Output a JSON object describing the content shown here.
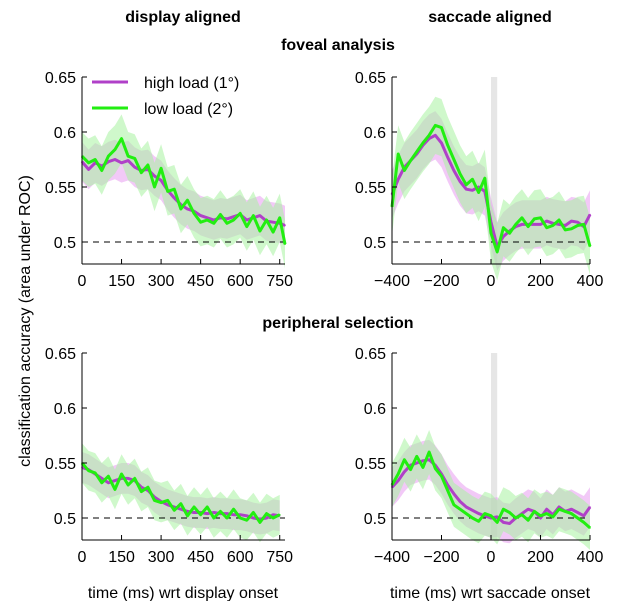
{
  "figure": {
    "col_titles": [
      "display aligned",
      "saccade aligned"
    ],
    "row_titles": [
      "foveal analysis",
      "peripheral selection"
    ],
    "ylabel": "classification accuracy (area under ROC)",
    "xlabel_display": "time (ms) wrt display onset",
    "xlabel_saccade": "time (ms) wrt saccade onset",
    "legend": [
      {
        "label": "high load (1°)",
        "color": "#b040c8"
      },
      {
        "label": "low load (2°)",
        "color": "#22ee11"
      }
    ],
    "colors": {
      "high_line": "#b040c8",
      "high_band": "#e89df0",
      "low_line": "#22ee11",
      "low_band": "#a8f2a0",
      "saccade_band": "#e6e6e6",
      "chance_line": "#000000"
    }
  },
  "chart_data": [
    {
      "type": "line",
      "panel": "foveal analysis, display aligned",
      "xlim": [
        0,
        770
      ],
      "ylim": [
        0.48,
        0.65
      ],
      "xticks": [
        0,
        150,
        300,
        450,
        600,
        750
      ],
      "yticks": [
        0.5,
        0.55,
        0.6,
        0.65
      ],
      "ytick_labels": [
        "0.5",
        "0.55",
        "0.6",
        "0.65"
      ],
      "chance": 0.5,
      "x": [
        0,
        25,
        50,
        75,
        100,
        125,
        150,
        175,
        200,
        225,
        250,
        275,
        300,
        325,
        350,
        375,
        400,
        425,
        450,
        475,
        500,
        525,
        550,
        575,
        600,
        625,
        650,
        675,
        700,
        725,
        750,
        770
      ],
      "series": [
        {
          "name": "high load (1°)",
          "values": [
            0.573,
            0.566,
            0.572,
            0.569,
            0.573,
            0.575,
            0.572,
            0.574,
            0.568,
            0.565,
            0.566,
            0.56,
            0.556,
            0.547,
            0.54,
            0.534,
            0.53,
            0.528,
            0.524,
            0.522,
            0.52,
            0.522,
            0.521,
            0.523,
            0.525,
            0.52,
            0.522,
            0.524,
            0.519,
            0.518,
            0.517,
            0.515
          ],
          "band": 0.018
        },
        {
          "name": "low load (2°)",
          "values": [
            0.578,
            0.572,
            0.575,
            0.565,
            0.578,
            0.584,
            0.594,
            0.578,
            0.576,
            0.563,
            0.57,
            0.55,
            0.567,
            0.546,
            0.548,
            0.53,
            0.538,
            0.526,
            0.518,
            0.52,
            0.517,
            0.525,
            0.517,
            0.52,
            0.526,
            0.514,
            0.524,
            0.51,
            0.52,
            0.509,
            0.522,
            0.498
          ],
          "band": 0.022
        }
      ]
    },
    {
      "type": "line",
      "panel": "foveal analysis, saccade aligned",
      "xlim": [
        -400,
        400
      ],
      "ylim": [
        0.48,
        0.65
      ],
      "xticks": [
        -400,
        -200,
        0,
        200,
        400
      ],
      "xtick_labels": [
        "−400",
        "−200",
        "0",
        "200",
        "400"
      ],
      "yticks": [
        0.5,
        0.55,
        0.6,
        0.65
      ],
      "ytick_labels": [
        "0.5",
        "0.55",
        "0.6",
        "0.65"
      ],
      "chance": 0.5,
      "saccade_band": [
        0,
        25
      ],
      "x": [
        -400,
        -375,
        -350,
        -325,
        -300,
        -275,
        -250,
        -225,
        -200,
        -175,
        -150,
        -125,
        -100,
        -75,
        -50,
        -25,
        0,
        25,
        50,
        75,
        100,
        125,
        150,
        175,
        200,
        225,
        250,
        275,
        300,
        325,
        350,
        375,
        400
      ],
      "series": [
        {
          "name": "high load (1°)",
          "values": [
            0.543,
            0.557,
            0.568,
            0.574,
            0.58,
            0.588,
            0.594,
            0.597,
            0.59,
            0.577,
            0.565,
            0.555,
            0.548,
            0.547,
            0.55,
            0.546,
            0.518,
            0.496,
            0.505,
            0.51,
            0.514,
            0.516,
            0.516,
            0.516,
            0.516,
            0.519,
            0.517,
            0.516,
            0.515,
            0.519,
            0.518,
            0.514,
            0.525
          ],
          "band": 0.022
        },
        {
          "name": "low load (2°)",
          "values": [
            0.532,
            0.58,
            0.565,
            0.574,
            0.582,
            0.59,
            0.597,
            0.606,
            0.604,
            0.588,
            0.575,
            0.562,
            0.552,
            0.557,
            0.545,
            0.558,
            0.508,
            0.491,
            0.513,
            0.508,
            0.516,
            0.522,
            0.514,
            0.521,
            0.522,
            0.513,
            0.515,
            0.52,
            0.511,
            0.512,
            0.515,
            0.516,
            0.496
          ],
          "band": 0.026
        }
      ]
    },
    {
      "type": "line",
      "panel": "peripheral selection, display aligned",
      "xlim": [
        0,
        770
      ],
      "ylim": [
        0.48,
        0.65
      ],
      "xticks": [
        0,
        150,
        300,
        450,
        600,
        750
      ],
      "yticks": [
        0.5,
        0.55,
        0.6,
        0.65
      ],
      "ytick_labels": [
        "0.5",
        "0.55",
        "0.6",
        "0.65"
      ],
      "chance": 0.5,
      "x": [
        0,
        25,
        50,
        75,
        100,
        125,
        150,
        175,
        200,
        225,
        250,
        275,
        300,
        325,
        350,
        375,
        400,
        425,
        450,
        475,
        500,
        525,
        550,
        575,
        600,
        625,
        650,
        675,
        700,
        725,
        750
      ],
      "series": [
        {
          "name": "high load (1°)",
          "values": [
            0.546,
            0.544,
            0.54,
            0.536,
            0.532,
            0.534,
            0.536,
            0.536,
            0.534,
            0.528,
            0.525,
            0.519,
            0.515,
            0.512,
            0.51,
            0.508,
            0.506,
            0.505,
            0.505,
            0.504,
            0.505,
            0.504,
            0.504,
            0.503,
            0.503,
            0.502,
            0.5,
            0.499,
            0.5,
            0.503,
            0.502
          ],
          "band": 0.014
        },
        {
          "name": "low load (2°)",
          "values": [
            0.55,
            0.543,
            0.541,
            0.532,
            0.538,
            0.526,
            0.54,
            0.53,
            0.536,
            0.524,
            0.528,
            0.516,
            0.514,
            0.516,
            0.507,
            0.513,
            0.502,
            0.51,
            0.503,
            0.51,
            0.5,
            0.506,
            0.5,
            0.508,
            0.5,
            0.498,
            0.505,
            0.496,
            0.504,
            0.5,
            0.503
          ],
          "band": 0.018
        }
      ]
    },
    {
      "type": "line",
      "panel": "peripheral selection, saccade aligned",
      "xlim": [
        -400,
        400
      ],
      "ylim": [
        0.48,
        0.65
      ],
      "xticks": [
        -400,
        -200,
        0,
        200,
        400
      ],
      "xtick_labels": [
        "−400",
        "−200",
        "0",
        "200",
        "400"
      ],
      "yticks": [
        0.5,
        0.55,
        0.6,
        0.65
      ],
      "ytick_labels": [
        "0.5",
        "0.55",
        "0.6",
        "0.65"
      ],
      "chance": 0.5,
      "saccade_band": [
        0,
        25
      ],
      "x": [
        -400,
        -375,
        -350,
        -325,
        -300,
        -275,
        -250,
        -225,
        -200,
        -175,
        -150,
        -125,
        -100,
        -75,
        -50,
        -25,
        0,
        25,
        50,
        75,
        100,
        125,
        150,
        175,
        200,
        225,
        250,
        275,
        300,
        325,
        350,
        375,
        400
      ],
      "series": [
        {
          "name": "high load (1°)",
          "values": [
            0.528,
            0.534,
            0.542,
            0.548,
            0.55,
            0.552,
            0.553,
            0.548,
            0.54,
            0.53,
            0.522,
            0.515,
            0.51,
            0.507,
            0.504,
            0.502,
            0.5,
            0.501,
            0.496,
            0.495,
            0.5,
            0.504,
            0.508,
            0.506,
            0.5,
            0.508,
            0.503,
            0.51,
            0.506,
            0.508,
            0.505,
            0.502,
            0.51
          ],
          "band": 0.018
        },
        {
          "name": "low load (2°)",
          "values": [
            0.53,
            0.54,
            0.553,
            0.544,
            0.556,
            0.546,
            0.56,
            0.545,
            0.538,
            0.525,
            0.512,
            0.508,
            0.504,
            0.5,
            0.497,
            0.504,
            0.502,
            0.496,
            0.508,
            0.505,
            0.5,
            0.503,
            0.498,
            0.506,
            0.502,
            0.504,
            0.501,
            0.508,
            0.506,
            0.504,
            0.5,
            0.496,
            0.491
          ],
          "band": 0.02
        }
      ]
    }
  ]
}
